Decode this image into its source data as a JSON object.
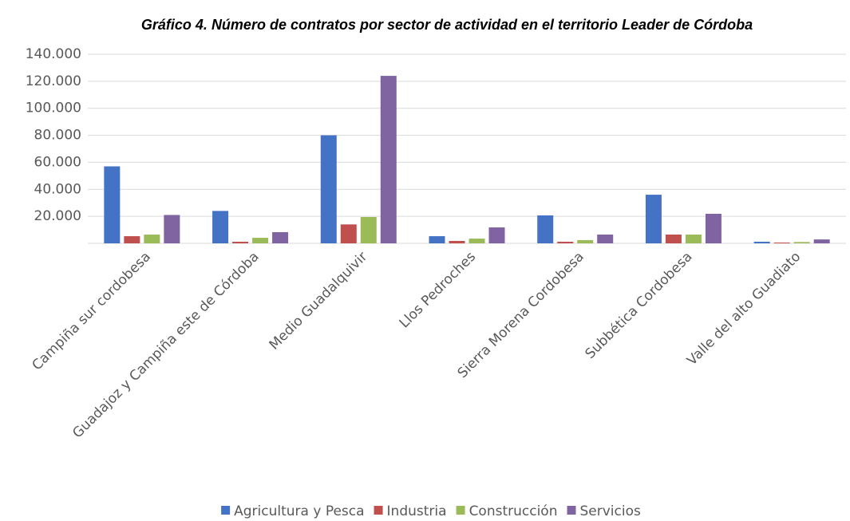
{
  "chart_data": {
    "type": "bar",
    "title": "Gráfico 4. Número de contratos por sector de actividad en el territorio Leader de Córdoba",
    "categories": [
      "Campiña sur cordobesa",
      "Guadajoz y Campiña este de Córdoba",
      "Medio Guadalquivir",
      "Llos Pedroches",
      "Sierra Morena Cordobesa",
      "Subbética Cordobesa",
      "Valle del alto Guadiato"
    ],
    "series": [
      {
        "name": "Agricultura y Pesca",
        "color": "#4472c4",
        "values": [
          57000,
          24000,
          80000,
          5300,
          20700,
          36000,
          1200
        ]
      },
      {
        "name": "Industria",
        "color": "#c0504d",
        "values": [
          5300,
          1200,
          14000,
          1800,
          1200,
          6500,
          600
        ]
      },
      {
        "name": "Construcción",
        "color": "#9bbb59",
        "values": [
          6500,
          4100,
          19500,
          3500,
          2400,
          6500,
          1000
        ]
      },
      {
        "name": "Servicios",
        "color": "#8064a2",
        "values": [
          21000,
          8300,
          124000,
          11800,
          6500,
          21900,
          2900
        ]
      }
    ],
    "ylim": [
      0,
      140000
    ],
    "yticks": [
      {
        "value": 20000,
        "label": "20.000"
      },
      {
        "value": 40000,
        "label": "40.000"
      },
      {
        "value": 60000,
        "label": "60.000"
      },
      {
        "value": 80000,
        "label": "80.000"
      },
      {
        "value": 100000,
        "label": "100.000"
      },
      {
        "value": 120000,
        "label": "120.000"
      },
      {
        "value": 140000,
        "label": "140.000"
      }
    ],
    "grid": true,
    "legend": "bottom"
  }
}
